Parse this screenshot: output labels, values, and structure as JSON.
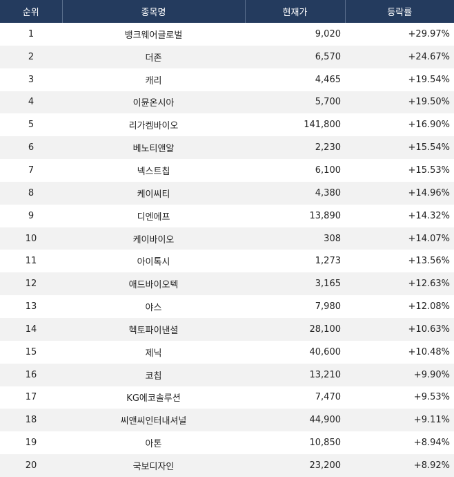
{
  "table": {
    "header": [
      "순위",
      "종목명",
      "현재가",
      "등락률"
    ],
    "rows": [
      [
        "1",
        "뱅크웨어글로벌",
        "9,020",
        "+29.97%"
      ],
      [
        "2",
        "더존",
        "6,570",
        "+24.67%"
      ],
      [
        "3",
        "캐리",
        "4,465",
        "+19.54%"
      ],
      [
        "4",
        "이뮨온시아",
        "5,700",
        "+19.50%"
      ],
      [
        "5",
        "리가켐바이오",
        "141,800",
        "+16.90%"
      ],
      [
        "6",
        "베노티앤알",
        "2,230",
        "+15.54%"
      ],
      [
        "7",
        "넥스트칩",
        "6,100",
        "+15.53%"
      ],
      [
        "8",
        "케이씨티",
        "4,380",
        "+14.96%"
      ],
      [
        "9",
        "디엔에프",
        "13,890",
        "+14.32%"
      ],
      [
        "10",
        "케이바이오",
        "308",
        "+14.07%"
      ],
      [
        "11",
        "아이톡시",
        "1,273",
        "+13.56%"
      ],
      [
        "12",
        "애드바이오텍",
        "3,165",
        "+12.63%"
      ],
      [
        "13",
        "야스",
        "7,980",
        "+12.08%"
      ],
      [
        "14",
        "헥토파이낸셜",
        "28,100",
        "+10.63%"
      ],
      [
        "15",
        "제닉",
        "40,600",
        "+10.48%"
      ],
      [
        "16",
        "코칩",
        "13,210",
        "+9.90%"
      ],
      [
        "17",
        "KG에코솔루션",
        "7,470",
        "+9.53%"
      ],
      [
        "18",
        "씨앤씨인터내셔널",
        "44,900",
        "+9.11%"
      ],
      [
        "19",
        "아톤",
        "10,850",
        "+8.94%"
      ],
      [
        "20",
        "국보디자인",
        "23,200",
        "+8.92%"
      ]
    ]
  }
}
